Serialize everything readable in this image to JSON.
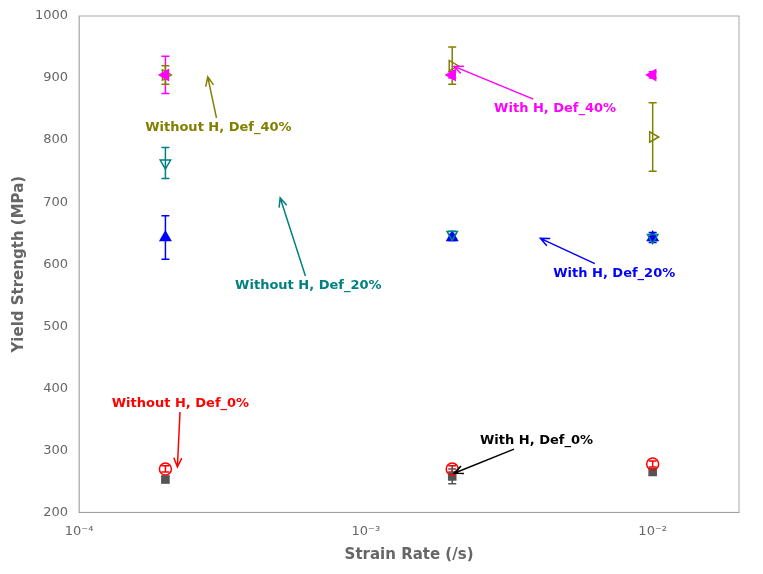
{
  "chart_data": {
    "type": "scatter",
    "xlabel": "Strain Rate (/s)",
    "ylabel": "Yield Strength (MPa)",
    "log": "x",
    "grid": false,
    "x": [
      0.0002,
      0.002,
      0.01
    ],
    "xlim": [
      0.0001,
      0.02
    ],
    "xticks": [
      {
        "value": 0.0001,
        "label": "10⁻⁴"
      },
      {
        "value": 0.001,
        "label": "10⁻³"
      },
      {
        "value": 0.01,
        "label": "10⁻²"
      }
    ],
    "ylim": [
      200,
      1000
    ],
    "yticks": [
      200,
      300,
      400,
      500,
      600,
      700,
      800,
      900,
      1000
    ],
    "series": [
      {
        "color": "#FF0000",
        "marker": "open_circle",
        "values": [
          270,
          270,
          278
        ],
        "errors": [
          5,
          5,
          5
        ]
      },
      {
        "color": "#555555",
        "marker": "square",
        "values": [
          253,
          258,
          265
        ],
        "errors": [
          5,
          12,
          5
        ]
      },
      {
        "color": "#008080",
        "marker": "open_triangle_down",
        "values": [
          763,
          648,
          643
        ],
        "errors": [
          25,
          5,
          5
        ]
      },
      {
        "color": "#0000FF",
        "marker": "triangle_up",
        "values": [
          643,
          643,
          643
        ],
        "errors": [
          35,
          5,
          8
        ]
      },
      {
        "color": "#FF00FF",
        "marker": "triangle_left",
        "values": [
          905,
          905,
          905
        ],
        "errors": [
          30,
          5,
          5
        ]
      },
      {
        "color": "#808000",
        "marker": "open_triangle_right",
        "values": [
          905,
          920,
          805
        ],
        "errors": [
          15,
          30,
          55
        ]
      }
    ],
    "annotations": [
      {
        "text": "Without H, Def_0%",
        "xy": [
          0.00022,
          270
        ],
        "xytext": [
          0.00013,
          370
        ],
        "color": "#FF0000"
      },
      {
        "text": "With H, Def_0%",
        "xy": [
          0.002,
          262
        ],
        "xytext": [
          0.0025,
          310
        ],
        "color": "#000000"
      },
      {
        "text": "Without H, Def_20%",
        "xy": [
          0.0005,
          710
        ],
        "xytext": [
          0.00035,
          560
        ],
        "color": "#008080"
      },
      {
        "text": "With H, Def_20%",
        "xy": [
          0.004,
          643
        ],
        "xytext": [
          0.0045,
          580
        ],
        "color": "#0000FF"
      },
      {
        "text": "Without H, Def_40%",
        "xy": [
          0.00028,
          905
        ],
        "xytext": [
          0.00017,
          815
        ],
        "color": "#808000"
      },
      {
        "text": "With H, Def_40%",
        "xy": [
          0.002,
          920
        ],
        "xytext": [
          0.0028,
          845
        ],
        "color": "#FF00FF"
      }
    ]
  }
}
